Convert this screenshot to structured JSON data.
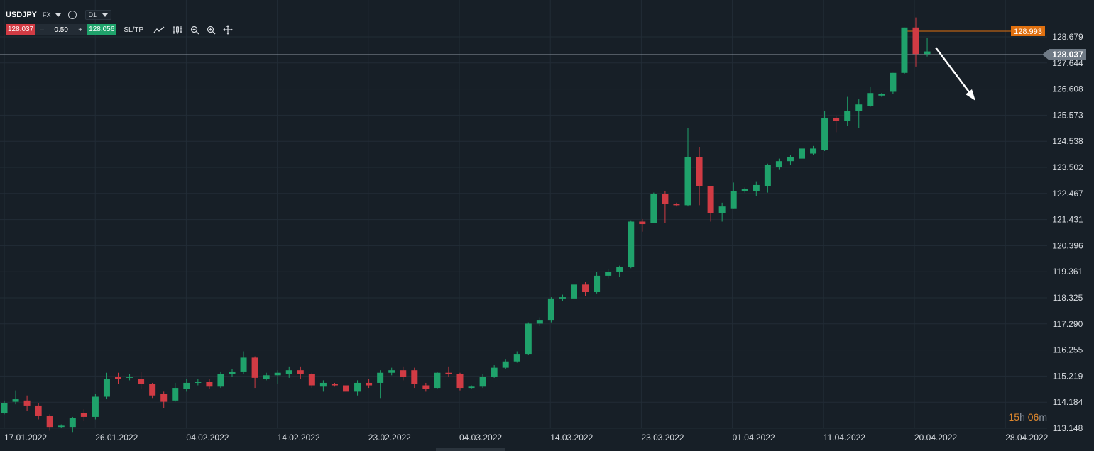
{
  "header": {
    "symbol": "USDJPY",
    "market": "FX",
    "timeframe": "D1",
    "bid": "128.037",
    "ask": "128.056",
    "lot_size": "0.50",
    "minus": "–",
    "plus": "+",
    "sltp_label": "SL/TP"
  },
  "colors": {
    "background": "#171f27",
    "up": "#1fa26b",
    "down": "#d13b44",
    "grid": "#222c36",
    "label_high": "#e0700f",
    "current_line": "#8c959f"
  },
  "timer": {
    "hours": "15",
    "h": "h",
    "minutes": "06",
    "m": "m"
  },
  "chart_data": {
    "type": "candlestick",
    "symbol": "USDJPY",
    "timeframe": "D1",
    "ylim": [
      113.148,
      128.679
    ],
    "y_ticks": [
      "128.679",
      "127.644",
      "126.608",
      "125.573",
      "124.538",
      "123.502",
      "122.467",
      "121.431",
      "120.396",
      "119.361",
      "118.325",
      "117.290",
      "116.255",
      "115.219",
      "114.184",
      "113.148"
    ],
    "x_ticks": [
      "17.01.2022",
      "26.01.2022",
      "04.02.2022",
      "14.02.2022",
      "23.02.2022",
      "04.03.2022",
      "14.03.2022",
      "23.03.2022",
      "01.04.2022",
      "11.04.2022",
      "20.04.2022",
      "28.04.2022"
    ],
    "current_price": "128.037",
    "high_marker": "128.993",
    "candles": [
      [
        113.75,
        114.15,
        113.7,
        114.25
      ],
      [
        114.2,
        114.3,
        114.1,
        114.65
      ],
      [
        114.25,
        114.05,
        113.85,
        114.45
      ],
      [
        114.05,
        113.65,
        113.5,
        114.15
      ],
      [
        113.65,
        113.2,
        113.05,
        113.7
      ],
      [
        113.2,
        113.25,
        113.15,
        113.3
      ],
      [
        113.2,
        113.55,
        113.0,
        113.6
      ],
      [
        113.75,
        113.6,
        113.45,
        113.9
      ],
      [
        113.6,
        114.4,
        113.5,
        114.5
      ],
      [
        114.4,
        115.1,
        114.3,
        115.35
      ],
      [
        115.2,
        115.1,
        114.9,
        115.35
      ],
      [
        115.15,
        115.2,
        115.05,
        115.3
      ],
      [
        115.1,
        114.9,
        114.7,
        115.4
      ],
      [
        114.9,
        114.45,
        114.35,
        114.95
      ],
      [
        114.5,
        114.2,
        113.95,
        114.6
      ],
      [
        114.25,
        114.75,
        114.2,
        114.95
      ],
      [
        114.7,
        114.95,
        114.6,
        115.1
      ],
      [
        114.95,
        115.0,
        114.85,
        115.1
      ],
      [
        115.0,
        114.8,
        114.7,
        115.1
      ],
      [
        114.8,
        115.3,
        114.75,
        115.4
      ],
      [
        115.3,
        115.4,
        115.2,
        115.5
      ],
      [
        115.4,
        115.95,
        115.3,
        116.2
      ],
      [
        115.95,
        115.15,
        114.75,
        116.0
      ],
      [
        115.1,
        115.25,
        115.05,
        115.35
      ],
      [
        115.25,
        115.35,
        114.9,
        115.45
      ],
      [
        115.3,
        115.45,
        115.15,
        115.6
      ],
      [
        115.45,
        115.3,
        115.1,
        115.6
      ],
      [
        115.3,
        114.85,
        114.75,
        115.35
      ],
      [
        114.8,
        114.95,
        114.6,
        115.05
      ],
      [
        114.9,
        114.85,
        114.8,
        114.95
      ],
      [
        114.85,
        114.6,
        114.5,
        114.9
      ],
      [
        114.6,
        114.95,
        114.45,
        115.05
      ],
      [
        114.95,
        114.85,
        114.75,
        115.1
      ],
      [
        114.95,
        115.35,
        114.35,
        115.45
      ],
      [
        115.35,
        115.45,
        115.25,
        115.55
      ],
      [
        115.45,
        115.2,
        115.05,
        115.6
      ],
      [
        115.45,
        114.9,
        114.75,
        115.55
      ],
      [
        114.85,
        114.7,
        114.6,
        114.95
      ],
      [
        114.75,
        115.35,
        114.7,
        115.4
      ],
      [
        115.35,
        115.3,
        115.2,
        115.6
      ],
      [
        115.3,
        114.75,
        114.65,
        115.35
      ],
      [
        114.75,
        114.8,
        114.7,
        114.85
      ],
      [
        114.8,
        115.2,
        114.75,
        115.3
      ],
      [
        115.2,
        115.55,
        115.15,
        115.65
      ],
      [
        115.55,
        115.8,
        115.5,
        115.9
      ],
      [
        115.8,
        116.1,
        115.75,
        116.2
      ],
      [
        116.1,
        117.3,
        116.05,
        117.35
      ],
      [
        117.3,
        117.45,
        117.2,
        117.55
      ],
      [
        117.45,
        118.3,
        117.35,
        118.35
      ],
      [
        118.3,
        118.35,
        118.2,
        118.45
      ],
      [
        118.3,
        118.85,
        118.25,
        119.1
      ],
      [
        118.85,
        118.55,
        118.4,
        118.95
      ],
      [
        118.55,
        119.2,
        118.5,
        119.35
      ],
      [
        119.2,
        119.35,
        119.1,
        119.45
      ],
      [
        119.35,
        119.55,
        119.15,
        119.6
      ],
      [
        119.55,
        121.35,
        119.5,
        121.4
      ],
      [
        121.35,
        121.25,
        120.95,
        121.45
      ],
      [
        121.3,
        122.45,
        121.3,
        122.5
      ],
      [
        122.45,
        122.05,
        121.3,
        122.55
      ],
      [
        122.05,
        122.0,
        121.95,
        122.1
      ],
      [
        122.0,
        123.9,
        121.95,
        125.05
      ],
      [
        123.9,
        122.75,
        122.0,
        124.3
      ],
      [
        122.75,
        121.7,
        121.35,
        122.75
      ],
      [
        121.7,
        121.95,
        121.35,
        122.1
      ],
      [
        121.85,
        122.55,
        121.85,
        122.9
      ],
      [
        122.55,
        122.65,
        122.5,
        122.7
      ],
      [
        122.55,
        122.8,
        122.35,
        122.95
      ],
      [
        122.75,
        123.6,
        122.5,
        123.65
      ],
      [
        123.5,
        123.75,
        123.4,
        123.85
      ],
      [
        123.75,
        123.9,
        123.6,
        124.0
      ],
      [
        123.85,
        124.25,
        123.7,
        124.45
      ],
      [
        124.05,
        124.25,
        124.0,
        124.35
      ],
      [
        124.2,
        125.45,
        124.15,
        125.75
      ],
      [
        125.45,
        125.35,
        124.9,
        125.55
      ],
      [
        125.35,
        125.75,
        125.15,
        126.3
      ],
      [
        125.75,
        126.0,
        125.05,
        126.2
      ],
      [
        125.95,
        126.45,
        125.9,
        126.7
      ],
      [
        126.35,
        126.4,
        126.3,
        126.45
      ],
      [
        126.5,
        127.25,
        126.4,
        127.25
      ],
      [
        127.25,
        129.05,
        127.2,
        129.05
      ],
      [
        129.05,
        128.0,
        127.5,
        129.45
      ],
      [
        128.0,
        128.1,
        127.9,
        128.65
      ]
    ]
  }
}
